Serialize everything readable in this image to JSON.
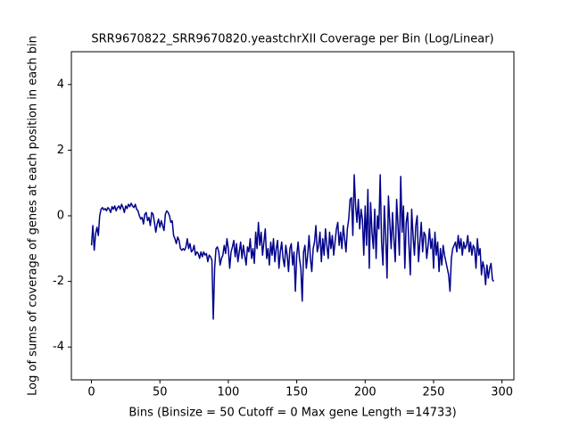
{
  "chart_data": {
    "type": "line",
    "title": "SRR9670822_SRR9670820.yeastchrXII Coverage per Bin (Log/Linear)",
    "x_label": "Bins  (Binsize = 50 Cutoff = 0 Max gene Length =14733)",
    "y_label": "Log of sums of coverage of genes at each position in each bin",
    "xlim": [
      -14.7,
      308.7
    ],
    "ylim": [
      -5,
      5
    ],
    "xticks": [
      0,
      50,
      100,
      150,
      200,
      250,
      300
    ],
    "yticks": [
      -4,
      -2,
      0,
      2,
      4
    ],
    "grid": false,
    "x": [
      0,
      1,
      2,
      3,
      4,
      5,
      6,
      7,
      8,
      9,
      10,
      11,
      12,
      13,
      14,
      15,
      16,
      17,
      18,
      19,
      20,
      21,
      22,
      23,
      24,
      25,
      26,
      27,
      28,
      29,
      30,
      31,
      32,
      33,
      34,
      35,
      36,
      37,
      38,
      39,
      40,
      41,
      42,
      43,
      44,
      45,
      46,
      47,
      48,
      49,
      50,
      51,
      52,
      53,
      54,
      55,
      56,
      57,
      58,
      59,
      60,
      61,
      62,
      63,
      64,
      65,
      66,
      67,
      68,
      69,
      70,
      71,
      72,
      73,
      74,
      75,
      76,
      77,
      78,
      79,
      80,
      81,
      82,
      83,
      84,
      85,
      86,
      87,
      88,
      89,
      90,
      91,
      92,
      93,
      94,
      95,
      96,
      97,
      98,
      99,
      100,
      101,
      102,
      103,
      104,
      105,
      106,
      107,
      108,
      109,
      110,
      111,
      112,
      113,
      114,
      115,
      116,
      117,
      118,
      119,
      120,
      121,
      122,
      123,
      124,
      125,
      126,
      127,
      128,
      129,
      130,
      131,
      132,
      133,
      134,
      135,
      136,
      137,
      138,
      139,
      140,
      141,
      142,
      143,
      144,
      145,
      146,
      147,
      148,
      149,
      150,
      151,
      152,
      153,
      154,
      155,
      156,
      157,
      158,
      159,
      160,
      161,
      162,
      163,
      164,
      165,
      166,
      167,
      168,
      169,
      170,
      171,
      172,
      173,
      174,
      175,
      176,
      177,
      178,
      179,
      180,
      181,
      182,
      183,
      184,
      185,
      186,
      187,
      188,
      189,
      190,
      191,
      192,
      193,
      194,
      195,
      196,
      197,
      198,
      199,
      200,
      201,
      202,
      203,
      204,
      205,
      206,
      207,
      208,
      209,
      210,
      211,
      212,
      213,
      214,
      215,
      216,
      217,
      218,
      219,
      220,
      221,
      222,
      223,
      224,
      225,
      226,
      227,
      228,
      229,
      230,
      231,
      232,
      233,
      234,
      235,
      236,
      237,
      238,
      239,
      240,
      241,
      242,
      243,
      244,
      245,
      246,
      247,
      248,
      249,
      250,
      251,
      252,
      253,
      254,
      255,
      256,
      257,
      258,
      259,
      260,
      261,
      262,
      263,
      264,
      265,
      266,
      267,
      268,
      269,
      270,
      271,
      272,
      273,
      274,
      275,
      276,
      277,
      278,
      279,
      280,
      281,
      282,
      283,
      284,
      285,
      286,
      287,
      288,
      289,
      290,
      291,
      292,
      293,
      294
    ],
    "series": [
      {
        "color": "#00008b",
        "values": [
          -0.9,
          -0.3,
          -1.05,
          -0.55,
          -0.35,
          -0.6,
          0.0,
          0.2,
          0.25,
          0.18,
          0.22,
          0.15,
          0.25,
          0.2,
          0.1,
          0.28,
          0.2,
          0.3,
          0.15,
          0.25,
          0.3,
          0.2,
          0.35,
          0.25,
          0.1,
          0.3,
          0.22,
          0.35,
          0.28,
          0.38,
          0.3,
          0.25,
          0.35,
          0.2,
          0.15,
          0.0,
          -0.1,
          -0.05,
          -0.25,
          0.05,
          0.1,
          -0.15,
          -0.05,
          -0.3,
          0.1,
          0.05,
          -0.2,
          -0.5,
          -0.25,
          -0.1,
          -0.35,
          -0.15,
          -0.3,
          -0.45,
          0.05,
          0.15,
          0.1,
          0.0,
          -0.2,
          -0.15,
          -0.6,
          -0.7,
          -0.85,
          -0.65,
          -0.75,
          -1.0,
          -1.05,
          -1.0,
          -1.05,
          -0.95,
          -0.7,
          -1.0,
          -0.85,
          -1.1,
          -1.05,
          -0.9,
          -1.2,
          -1.1,
          -1.15,
          -1.3,
          -1.1,
          -1.25,
          -1.1,
          -1.2,
          -1.15,
          -1.4,
          -1.2,
          -1.25,
          -1.35,
          -3.15,
          -1.6,
          -1.0,
          -0.95,
          -1.1,
          -1.5,
          -1.3,
          -1.2,
          -0.9,
          -1.15,
          -0.7,
          -1.0,
          -1.6,
          -1.1,
          -0.95,
          -0.75,
          -1.25,
          -0.85,
          -1.4,
          -1.1,
          -0.8,
          -1.3,
          -0.9,
          -1.2,
          -1.5,
          -0.95,
          -1.1,
          -0.7,
          -1.3,
          -1.0,
          -1.45,
          -0.5,
          -1.0,
          -0.2,
          -0.9,
          -0.5,
          -1.2,
          -0.8,
          -0.4,
          -1.3,
          -1.0,
          -1.5,
          -0.8,
          -1.2,
          -0.7,
          -1.4,
          -1.0,
          -0.75,
          -1.6,
          -1.1,
          -0.8,
          -1.3,
          -1.55,
          -0.9,
          -1.2,
          -1.7,
          -1.0,
          -0.85,
          -1.5,
          -1.1,
          -2.3,
          -1.2,
          -0.8,
          -1.3,
          -1.6,
          -2.6,
          -1.1,
          -0.9,
          -1.6,
          -1.2,
          -0.6,
          -1.3,
          -1.7,
          -1.0,
          -0.8,
          -0.3,
          -1.1,
          -0.9,
          -0.5,
          -1.4,
          -0.7,
          -1.2,
          -0.4,
          -0.9,
          -1.3,
          -0.5,
          -1.0,
          -0.6,
          -1.2,
          -0.8,
          -0.4,
          -0.2,
          -0.9,
          -0.5,
          -1.0,
          -0.3,
          -0.7,
          -1.1,
          -0.4,
          -0.1,
          0.5,
          0.55,
          -0.6,
          1.25,
          0.3,
          -0.2,
          0.5,
          -0.4,
          0.2,
          -0.1,
          -1.2,
          0.3,
          -0.9,
          0.8,
          -1.6,
          0.4,
          -0.5,
          -1.0,
          0.2,
          -1.3,
          0.0,
          -0.4,
          1.25,
          -0.8,
          -1.5,
          0.3,
          -0.6,
          -1.9,
          0.6,
          -0.2,
          -1.0,
          0.1,
          -0.7,
          -1.4,
          0.5,
          -0.3,
          -1.2,
          1.2,
          -0.5,
          0.3,
          -1.6,
          -0.2,
          0.1,
          -0.9,
          -1.8,
          0.2,
          -0.6,
          -1.2,
          -0.3,
          0.0,
          -1.4,
          -0.8,
          -0.2,
          -1.1,
          -0.5,
          -0.6,
          -1.3,
          -0.9,
          -0.4,
          -1.0,
          -0.7,
          -1.6,
          -0.5,
          -1.2,
          -0.8,
          -1.7,
          -1.0,
          -1.5,
          -0.9,
          -1.2,
          -1.4,
          -1.6,
          -1.8,
          -2.3,
          -1.3,
          -1.0,
          -0.9,
          -0.8,
          -1.1,
          -0.6,
          -1.0,
          -0.7,
          -1.2,
          -0.8,
          -1.0,
          -0.9,
          -0.6,
          -1.1,
          -0.8,
          -1.2,
          -0.9,
          -1.0,
          -1.6,
          -0.7,
          -1.2,
          -1.0,
          -1.8,
          -1.4,
          -1.6,
          -2.1,
          -1.5,
          -1.9,
          -1.6,
          -1.45,
          -1.95,
          -2.0
        ]
      }
    ]
  }
}
